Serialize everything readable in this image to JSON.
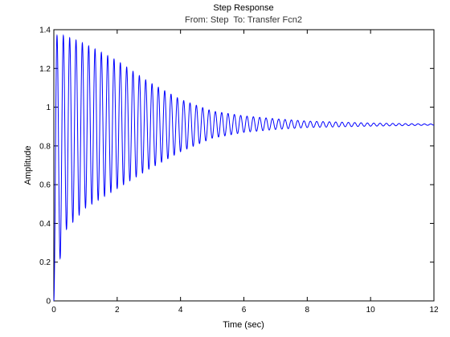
{
  "chart_data": {
    "type": "line",
    "title": "Step Response",
    "subtitle": "From: Step  To: Transfer Fcn2",
    "xlabel": "Time (sec)",
    "ylabel": "Amplitude",
    "xlim": [
      0,
      12
    ],
    "ylim": [
      0,
      1.4
    ],
    "x_ticks": [
      "0",
      "2",
      "4",
      "6",
      "8",
      "10",
      "12"
    ],
    "y_ticks": [
      "0",
      "0.2",
      "0.4",
      "0.6",
      "0.8",
      "1",
      "1.2",
      "1.4"
    ],
    "grid": false,
    "series": [
      {
        "color": "#0000ff",
        "final_value": 0.91,
        "oscillation_frequency_hz": 5.0,
        "peaks": [
          {
            "t": 0.3,
            "y": 1.37
          },
          {
            "t": 0.8,
            "y": 1.34
          },
          {
            "t": 1.3,
            "y": 1.3
          },
          {
            "t": 2.0,
            "y": 1.24
          },
          {
            "t": 3.0,
            "y": 1.13
          },
          {
            "t": 4.0,
            "y": 1.04
          },
          {
            "t": 5.0,
            "y": 0.98
          },
          {
            "t": 6.0,
            "y": 0.955
          },
          {
            "t": 7.0,
            "y": 0.94
          },
          {
            "t": 8.0,
            "y": 0.928
          },
          {
            "t": 10.0,
            "y": 0.918
          },
          {
            "t": 12.0,
            "y": 0.913
          }
        ],
        "troughs": [
          {
            "t": 0.0,
            "y": 0.0
          },
          {
            "t": 0.2,
            "y": 0.22
          },
          {
            "t": 0.4,
            "y": 0.37
          },
          {
            "t": 1.0,
            "y": 0.48
          },
          {
            "t": 2.0,
            "y": 0.58
          },
          {
            "t": 3.0,
            "y": 0.68
          },
          {
            "t": 4.0,
            "y": 0.77
          },
          {
            "t": 5.0,
            "y": 0.84
          },
          {
            "t": 6.0,
            "y": 0.87
          },
          {
            "t": 7.0,
            "y": 0.885
          },
          {
            "t": 8.0,
            "y": 0.895
          },
          {
            "t": 10.0,
            "y": 0.902
          },
          {
            "t": 12.0,
            "y": 0.907
          }
        ]
      }
    ]
  }
}
